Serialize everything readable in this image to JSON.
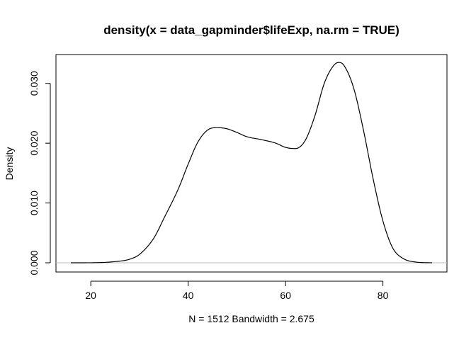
{
  "chart_data": {
    "type": "line",
    "title": "density(x = data_gapminder$lifeExp, na.rm = TRUE)",
    "xlabel": "N = 1512   Bandwidth = 2.675",
    "ylabel": "Density",
    "xlim": [
      15.9,
      90.1
    ],
    "ylim": [
      0,
      0.0334
    ],
    "x_ticks": [
      20,
      40,
      60,
      80
    ],
    "x_tick_labels": [
      "20",
      "40",
      "60",
      "80"
    ],
    "y_ticks": [
      0,
      0.01,
      0.02,
      0.03
    ],
    "y_tick_labels": [
      "0.000",
      "0.010",
      "0.020",
      "0.030"
    ],
    "grid": false,
    "zero_line": true,
    "series": [
      {
        "color": "#000000",
        "x": [
          15.9,
          20,
          25,
          28,
          30,
          33,
          35,
          38,
          40,
          42,
          44,
          46,
          48,
          50,
          52,
          55,
          58,
          60,
          62,
          64,
          66,
          68,
          70,
          71,
          72,
          74,
          76,
          78,
          80,
          82,
          84,
          87,
          90.1
        ],
        "y": [
          0.0,
          1e-05,
          0.0002,
          0.0006,
          0.0014,
          0.0042,
          0.0074,
          0.0124,
          0.0165,
          0.0202,
          0.0222,
          0.0226,
          0.0224,
          0.0218,
          0.0211,
          0.0206,
          0.02,
          0.0193,
          0.0191,
          0.0204,
          0.0245,
          0.0301,
          0.0331,
          0.0335,
          0.033,
          0.0292,
          0.0222,
          0.014,
          0.007,
          0.0025,
          0.0008,
          0.0001,
          0.0
        ]
      }
    ]
  }
}
